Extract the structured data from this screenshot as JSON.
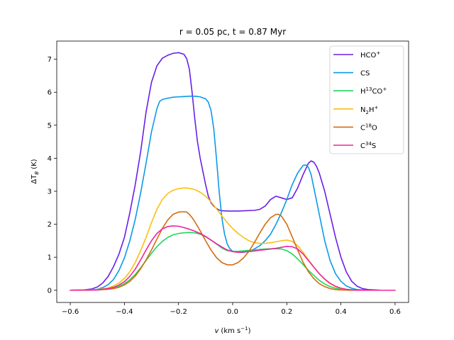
{
  "chart_data": {
    "type": "line",
    "title": "r = 0.05 pc, t = 0.87 Myr",
    "xlabel": {
      "italic": "v",
      "unit": "(km s",
      "unit_sup": "−1",
      "close": ")"
    },
    "ylabel": {
      "delta": "ΔT",
      "sub": "B",
      "unit": "(K)"
    },
    "xlim": [
      -0.65,
      0.65
    ],
    "ylim": [
      -0.37,
      7.55
    ],
    "xticks": [
      -0.6,
      -0.4,
      -0.2,
      0.0,
      0.2,
      0.4,
      0.6
    ],
    "xtick_labels": [
      "−0.6",
      "−0.4",
      "−0.2",
      "0.0",
      "0.2",
      "0.4",
      "0.6"
    ],
    "yticks": [
      0,
      1,
      2,
      3,
      4,
      5,
      6,
      7
    ],
    "ytick_labels": [
      "0",
      "1",
      "2",
      "3",
      "4",
      "5",
      "6",
      "7"
    ],
    "grid": false,
    "legend_position": "top-right",
    "series": [
      {
        "name": "HCO+",
        "label_base": "HCO",
        "label_sup": "+",
        "label_after": "",
        "label_sub": "",
        "label_tail": "",
        "color": "#6a1fe8",
        "x": [
          -0.6,
          -0.55,
          -0.52,
          -0.5,
          -0.48,
          -0.46,
          -0.44,
          -0.42,
          -0.4,
          -0.38,
          -0.36,
          -0.34,
          -0.32,
          -0.3,
          -0.28,
          -0.26,
          -0.24,
          -0.22,
          -0.2,
          -0.18,
          -0.17,
          -0.16,
          -0.15,
          -0.14,
          -0.13,
          -0.12,
          -0.11,
          -0.1,
          -0.09,
          -0.08,
          -0.07,
          -0.06,
          -0.05,
          -0.04,
          -0.02,
          0.0,
          0.02,
          0.05,
          0.08,
          0.1,
          0.12,
          0.14,
          0.16,
          0.18,
          0.2,
          0.22,
          0.24,
          0.26,
          0.28,
          0.29,
          0.3,
          0.31,
          0.32,
          0.34,
          0.36,
          0.38,
          0.4,
          0.42,
          0.44,
          0.46,
          0.48,
          0.5,
          0.55,
          0.6
        ],
        "y": [
          0.0,
          0.01,
          0.04,
          0.1,
          0.22,
          0.42,
          0.72,
          1.1,
          1.6,
          2.35,
          3.2,
          4.2,
          5.4,
          6.3,
          6.8,
          7.03,
          7.12,
          7.18,
          7.2,
          7.15,
          7.02,
          6.7,
          6.0,
          5.2,
          4.5,
          4.0,
          3.6,
          3.2,
          2.85,
          2.65,
          2.55,
          2.48,
          2.43,
          2.41,
          2.4,
          2.4,
          2.4,
          2.41,
          2.42,
          2.45,
          2.55,
          2.75,
          2.85,
          2.8,
          2.75,
          2.8,
          3.1,
          3.5,
          3.85,
          3.92,
          3.88,
          3.75,
          3.55,
          3.0,
          2.3,
          1.6,
          1.0,
          0.55,
          0.27,
          0.12,
          0.05,
          0.02,
          0.0,
          0.0
        ]
      },
      {
        "name": "CS",
        "label_base": "CS",
        "label_sup": "",
        "label_after": "",
        "label_sub": "",
        "label_tail": "",
        "color": "#0a9ae8",
        "x": [
          -0.6,
          -0.52,
          -0.5,
          -0.48,
          -0.46,
          -0.44,
          -0.42,
          -0.4,
          -0.38,
          -0.36,
          -0.34,
          -0.32,
          -0.3,
          -0.28,
          -0.27,
          -0.26,
          -0.25,
          -0.24,
          -0.22,
          -0.2,
          -0.18,
          -0.16,
          -0.14,
          -0.12,
          -0.1,
          -0.09,
          -0.08,
          -0.07,
          -0.06,
          -0.05,
          -0.04,
          -0.03,
          -0.02,
          -0.01,
          0.0,
          0.02,
          0.04,
          0.06,
          0.08,
          0.1,
          0.12,
          0.14,
          0.16,
          0.18,
          0.2,
          0.22,
          0.24,
          0.26,
          0.27,
          0.28,
          0.29,
          0.3,
          0.32,
          0.34,
          0.36,
          0.38,
          0.4,
          0.42,
          0.44,
          0.46,
          0.5,
          0.55,
          0.6
        ],
        "y": [
          0.0,
          0.01,
          0.03,
          0.08,
          0.17,
          0.33,
          0.6,
          0.98,
          1.5,
          2.15,
          2.95,
          3.85,
          4.8,
          5.5,
          5.72,
          5.78,
          5.8,
          5.82,
          5.85,
          5.86,
          5.87,
          5.88,
          5.88,
          5.86,
          5.8,
          5.7,
          5.45,
          4.9,
          4.0,
          3.0,
          2.2,
          1.7,
          1.4,
          1.25,
          1.18,
          1.15,
          1.15,
          1.18,
          1.25,
          1.35,
          1.5,
          1.7,
          2.0,
          2.35,
          2.75,
          3.2,
          3.55,
          3.78,
          3.8,
          3.72,
          3.5,
          3.1,
          2.3,
          1.5,
          0.9,
          0.5,
          0.27,
          0.13,
          0.06,
          0.02,
          0.0,
          0.0,
          0.0
        ]
      },
      {
        "name": "H13CO+",
        "label_base": "H",
        "label_sup": "13",
        "label_after": "CO",
        "label_sub": "",
        "label_tail": "+",
        "color": "#1ed85c",
        "x": [
          -0.6,
          -0.5,
          -0.46,
          -0.44,
          -0.42,
          -0.4,
          -0.38,
          -0.36,
          -0.34,
          -0.32,
          -0.3,
          -0.28,
          -0.26,
          -0.24,
          -0.22,
          -0.2,
          -0.18,
          -0.16,
          -0.14,
          -0.12,
          -0.1,
          -0.08,
          -0.06,
          -0.04,
          -0.02,
          0.0,
          0.02,
          0.05,
          0.08,
          0.1,
          0.12,
          0.15,
          0.18,
          0.2,
          0.22,
          0.24,
          0.26,
          0.28,
          0.3,
          0.32,
          0.34,
          0.36,
          0.38,
          0.4,
          0.42,
          0.46,
          0.5,
          0.6
        ],
        "y": [
          0.0,
          0.01,
          0.04,
          0.07,
          0.12,
          0.2,
          0.32,
          0.48,
          0.68,
          0.9,
          1.12,
          1.32,
          1.48,
          1.6,
          1.68,
          1.72,
          1.74,
          1.75,
          1.74,
          1.7,
          1.62,
          1.52,
          1.4,
          1.28,
          1.2,
          1.18,
          1.18,
          1.2,
          1.22,
          1.24,
          1.25,
          1.26,
          1.25,
          1.2,
          1.1,
          0.95,
          0.78,
          0.6,
          0.45,
          0.3,
          0.19,
          0.11,
          0.06,
          0.03,
          0.01,
          0.0,
          0.0,
          0.0
        ]
      },
      {
        "name": "N2H+",
        "label_base": "N",
        "label_sup": "",
        "label_after": "",
        "label_sub": "2",
        "label_tail": "H+",
        "color": "#fbbf0f",
        "x": [
          -0.6,
          -0.5,
          -0.46,
          -0.44,
          -0.42,
          -0.4,
          -0.38,
          -0.36,
          -0.34,
          -0.32,
          -0.3,
          -0.28,
          -0.26,
          -0.24,
          -0.22,
          -0.2,
          -0.18,
          -0.16,
          -0.14,
          -0.12,
          -0.1,
          -0.08,
          -0.06,
          -0.04,
          -0.02,
          0.0,
          0.02,
          0.04,
          0.06,
          0.08,
          0.1,
          0.12,
          0.14,
          0.16,
          0.18,
          0.2,
          0.22,
          0.24,
          0.26,
          0.28,
          0.3,
          0.32,
          0.34,
          0.36,
          0.38,
          0.4,
          0.42,
          0.46,
          0.5,
          0.6
        ],
        "y": [
          0.0,
          0.02,
          0.07,
          0.13,
          0.22,
          0.36,
          0.56,
          0.84,
          1.2,
          1.6,
          2.05,
          2.45,
          2.75,
          2.93,
          3.03,
          3.08,
          3.1,
          3.09,
          3.05,
          2.97,
          2.85,
          2.68,
          2.47,
          2.25,
          2.05,
          1.87,
          1.72,
          1.6,
          1.5,
          1.44,
          1.42,
          1.42,
          1.44,
          1.47,
          1.5,
          1.52,
          1.48,
          1.35,
          1.15,
          0.92,
          0.7,
          0.5,
          0.33,
          0.2,
          0.11,
          0.05,
          0.02,
          0.0,
          0.0,
          0.0
        ]
      },
      {
        "name": "C18O",
        "label_base": "C",
        "label_sup": "18",
        "label_after": "O",
        "label_sub": "",
        "label_tail": "",
        "color": "#d56b10",
        "x": [
          -0.6,
          -0.5,
          -0.46,
          -0.44,
          -0.42,
          -0.4,
          -0.38,
          -0.36,
          -0.34,
          -0.32,
          -0.3,
          -0.28,
          -0.26,
          -0.24,
          -0.22,
          -0.2,
          -0.18,
          -0.17,
          -0.16,
          -0.15,
          -0.14,
          -0.12,
          -0.1,
          -0.08,
          -0.06,
          -0.04,
          -0.02,
          0.0,
          0.02,
          0.04,
          0.06,
          0.08,
          0.1,
          0.12,
          0.14,
          0.16,
          0.17,
          0.18,
          0.2,
          0.22,
          0.24,
          0.26,
          0.28,
          0.3,
          0.32,
          0.34,
          0.36,
          0.38,
          0.4,
          0.44,
          0.5,
          0.6
        ],
        "y": [
          0.0,
          0.01,
          0.03,
          0.05,
          0.09,
          0.16,
          0.27,
          0.43,
          0.65,
          0.92,
          1.22,
          1.55,
          1.87,
          2.13,
          2.3,
          2.37,
          2.38,
          2.37,
          2.3,
          2.2,
          2.08,
          1.8,
          1.5,
          1.22,
          0.99,
          0.84,
          0.77,
          0.77,
          0.84,
          0.98,
          1.18,
          1.44,
          1.73,
          2.0,
          2.2,
          2.3,
          2.3,
          2.25,
          2.0,
          1.62,
          1.22,
          0.85,
          0.56,
          0.35,
          0.2,
          0.11,
          0.05,
          0.02,
          0.01,
          0.0,
          0.0,
          0.0
        ]
      },
      {
        "name": "C34S",
        "label_base": "C",
        "label_sup": "34",
        "label_after": "S",
        "label_sub": "",
        "label_tail": "",
        "color": "#f0249c",
        "x": [
          -0.6,
          -0.5,
          -0.46,
          -0.44,
          -0.42,
          -0.4,
          -0.38,
          -0.36,
          -0.34,
          -0.32,
          -0.3,
          -0.28,
          -0.26,
          -0.24,
          -0.22,
          -0.2,
          -0.18,
          -0.16,
          -0.14,
          -0.12,
          -0.1,
          -0.08,
          -0.06,
          -0.04,
          -0.02,
          0.0,
          0.02,
          0.04,
          0.06,
          0.08,
          0.1,
          0.12,
          0.14,
          0.16,
          0.18,
          0.2,
          0.22,
          0.24,
          0.26,
          0.28,
          0.3,
          0.32,
          0.34,
          0.36,
          0.38,
          0.4,
          0.42,
          0.46,
          0.5,
          0.6
        ],
        "y": [
          0.0,
          0.01,
          0.05,
          0.09,
          0.16,
          0.26,
          0.42,
          0.64,
          0.92,
          1.22,
          1.5,
          1.72,
          1.86,
          1.93,
          1.95,
          1.94,
          1.9,
          1.85,
          1.79,
          1.72,
          1.63,
          1.52,
          1.41,
          1.31,
          1.22,
          1.17,
          1.15,
          1.16,
          1.17,
          1.19,
          1.21,
          1.23,
          1.25,
          1.27,
          1.3,
          1.33,
          1.32,
          1.25,
          1.1,
          0.9,
          0.7,
          0.5,
          0.34,
          0.21,
          0.12,
          0.06,
          0.03,
          0.0,
          0.0,
          0.0
        ]
      }
    ]
  }
}
